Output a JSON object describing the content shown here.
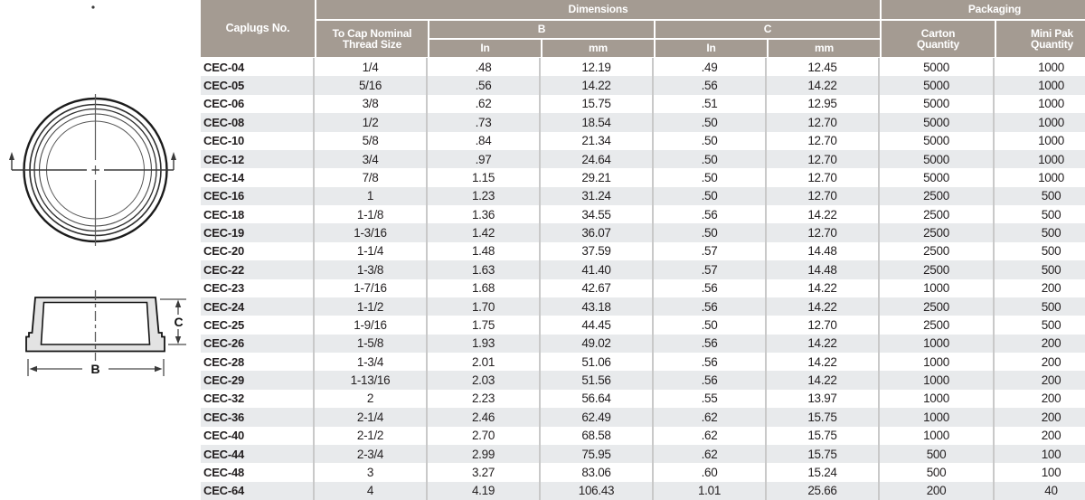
{
  "colors": {
    "header_bg": "#a49b92",
    "row_stripe": "#e8eaec",
    "grid_line": "#c9c9c9",
    "text": "#231f20",
    "drawing_fill": "#e3e3e3",
    "drawing_line": "#1a1a1a"
  },
  "diagram": {
    "label_b": "B",
    "label_c": "C"
  },
  "table": {
    "headers": {
      "caplugs_no": "Caplugs No.",
      "dimensions": "Dimensions",
      "packaging": "Packaging",
      "thread_size": "To Cap Nominal\nThread Size",
      "b": "B",
      "c": "C",
      "in": "In",
      "mm": "mm",
      "carton_qty": "Carton\nQuantity",
      "mini_pak_qty": "Mini Pak\nQuantity"
    },
    "rows": [
      {
        "caplugs_no": "CEC-04",
        "thread_size": "1/4",
        "b_in": ".48",
        "b_mm": "12.19",
        "c_in": ".49",
        "c_mm": "12.45",
        "carton_qty": "5000",
        "mini_pak_qty": "1000"
      },
      {
        "caplugs_no": "CEC-05",
        "thread_size": "5/16",
        "b_in": ".56",
        "b_mm": "14.22",
        "c_in": ".56",
        "c_mm": "14.22",
        "carton_qty": "5000",
        "mini_pak_qty": "1000"
      },
      {
        "caplugs_no": "CEC-06",
        "thread_size": "3/8",
        "b_in": ".62",
        "b_mm": "15.75",
        "c_in": ".51",
        "c_mm": "12.95",
        "carton_qty": "5000",
        "mini_pak_qty": "1000"
      },
      {
        "caplugs_no": "CEC-08",
        "thread_size": "1/2",
        "b_in": ".73",
        "b_mm": "18.54",
        "c_in": ".50",
        "c_mm": "12.70",
        "carton_qty": "5000",
        "mini_pak_qty": "1000"
      },
      {
        "caplugs_no": "CEC-10",
        "thread_size": "5/8",
        "b_in": ".84",
        "b_mm": "21.34",
        "c_in": ".50",
        "c_mm": "12.70",
        "carton_qty": "5000",
        "mini_pak_qty": "1000"
      },
      {
        "caplugs_no": "CEC-12",
        "thread_size": "3/4",
        "b_in": ".97",
        "b_mm": "24.64",
        "c_in": ".50",
        "c_mm": "12.70",
        "carton_qty": "5000",
        "mini_pak_qty": "1000"
      },
      {
        "caplugs_no": "CEC-14",
        "thread_size": "7/8",
        "b_in": "1.15",
        "b_mm": "29.21",
        "c_in": ".50",
        "c_mm": "12.70",
        "carton_qty": "5000",
        "mini_pak_qty": "1000"
      },
      {
        "caplugs_no": "CEC-16",
        "thread_size": "1",
        "b_in": "1.23",
        "b_mm": "31.24",
        "c_in": ".50",
        "c_mm": "12.70",
        "carton_qty": "2500",
        "mini_pak_qty": "500"
      },
      {
        "caplugs_no": "CEC-18",
        "thread_size": "1-1/8",
        "b_in": "1.36",
        "b_mm": "34.55",
        "c_in": ".56",
        "c_mm": "14.22",
        "carton_qty": "2500",
        "mini_pak_qty": "500"
      },
      {
        "caplugs_no": "CEC-19",
        "thread_size": "1-3/16",
        "b_in": "1.42",
        "b_mm": "36.07",
        "c_in": ".50",
        "c_mm": "12.70",
        "carton_qty": "2500",
        "mini_pak_qty": "500"
      },
      {
        "caplugs_no": "CEC-20",
        "thread_size": "1-1/4",
        "b_in": "1.48",
        "b_mm": "37.59",
        "c_in": ".57",
        "c_mm": "14.48",
        "carton_qty": "2500",
        "mini_pak_qty": "500"
      },
      {
        "caplugs_no": "CEC-22",
        "thread_size": "1-3/8",
        "b_in": "1.63",
        "b_mm": "41.40",
        "c_in": ".57",
        "c_mm": "14.48",
        "carton_qty": "2500",
        "mini_pak_qty": "500"
      },
      {
        "caplugs_no": "CEC-23",
        "thread_size": "1-7/16",
        "b_in": "1.68",
        "b_mm": "42.67",
        "c_in": ".56",
        "c_mm": "14.22",
        "carton_qty": "1000",
        "mini_pak_qty": "200"
      },
      {
        "caplugs_no": "CEC-24",
        "thread_size": "1-1/2",
        "b_in": "1.70",
        "b_mm": "43.18",
        "c_in": ".56",
        "c_mm": "14.22",
        "carton_qty": "2500",
        "mini_pak_qty": "500"
      },
      {
        "caplugs_no": "CEC-25",
        "thread_size": "1-9/16",
        "b_in": "1.75",
        "b_mm": "44.45",
        "c_in": ".50",
        "c_mm": "12.70",
        "carton_qty": "2500",
        "mini_pak_qty": "500"
      },
      {
        "caplugs_no": "CEC-26",
        "thread_size": "1-5/8",
        "b_in": "1.93",
        "b_mm": "49.02",
        "c_in": ".56",
        "c_mm": "14.22",
        "carton_qty": "1000",
        "mini_pak_qty": "200"
      },
      {
        "caplugs_no": "CEC-28",
        "thread_size": "1-3/4",
        "b_in": "2.01",
        "b_mm": "51.06",
        "c_in": ".56",
        "c_mm": "14.22",
        "carton_qty": "1000",
        "mini_pak_qty": "200"
      },
      {
        "caplugs_no": "CEC-29",
        "thread_size": "1-13/16",
        "b_in": "2.03",
        "b_mm": "51.56",
        "c_in": ".56",
        "c_mm": "14.22",
        "carton_qty": "1000",
        "mini_pak_qty": "200"
      },
      {
        "caplugs_no": "CEC-32",
        "thread_size": "2",
        "b_in": "2.23",
        "b_mm": "56.64",
        "c_in": ".55",
        "c_mm": "13.97",
        "carton_qty": "1000",
        "mini_pak_qty": "200"
      },
      {
        "caplugs_no": "CEC-36",
        "thread_size": "2-1/4",
        "b_in": "2.46",
        "b_mm": "62.49",
        "c_in": ".62",
        "c_mm": "15.75",
        "carton_qty": "1000",
        "mini_pak_qty": "200"
      },
      {
        "caplugs_no": "CEC-40",
        "thread_size": "2-1/2",
        "b_in": "2.70",
        "b_mm": "68.58",
        "c_in": ".62",
        "c_mm": "15.75",
        "carton_qty": "1000",
        "mini_pak_qty": "200"
      },
      {
        "caplugs_no": "CEC-44",
        "thread_size": "2-3/4",
        "b_in": "2.99",
        "b_mm": "75.95",
        "c_in": ".62",
        "c_mm": "15.75",
        "carton_qty": "500",
        "mini_pak_qty": "100"
      },
      {
        "caplugs_no": "CEC-48",
        "thread_size": "3",
        "b_in": "3.27",
        "b_mm": "83.06",
        "c_in": ".60",
        "c_mm": "15.24",
        "carton_qty": "500",
        "mini_pak_qty": "100"
      },
      {
        "caplugs_no": "CEC-64",
        "thread_size": "4",
        "b_in": "4.19",
        "b_mm": "106.43",
        "c_in": "1.01",
        "c_mm": "25.66",
        "carton_qty": "200",
        "mini_pak_qty": "40"
      }
    ]
  }
}
